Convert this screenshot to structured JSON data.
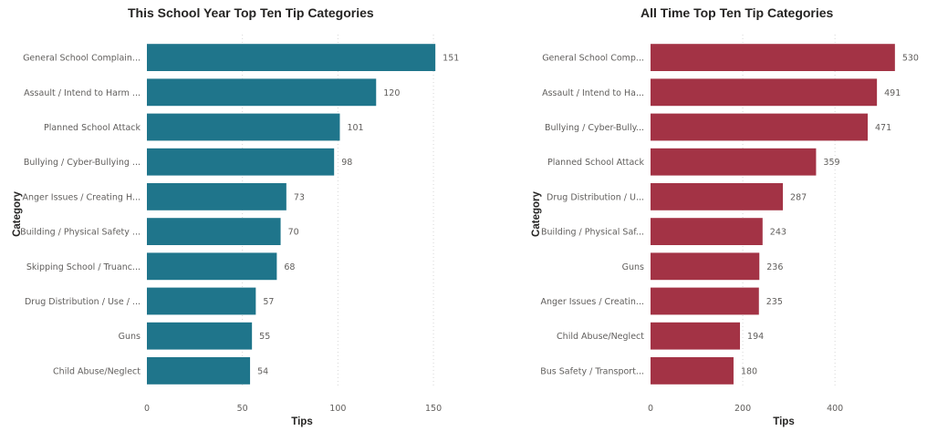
{
  "chart_data": [
    {
      "type": "bar",
      "orientation": "horizontal",
      "title": "This School Year Top Ten Tip Categories",
      "xlabel": "Tips",
      "ylabel": "Category",
      "xlim": [
        0,
        160
      ],
      "xticks": [
        0,
        50,
        100,
        150
      ],
      "grid": true,
      "color": "#1f758b",
      "categories": [
        "General School Complain...",
        "Assault / Intend to Harm ...",
        "Planned School Attack",
        "Bullying / Cyber-Bullying ...",
        "Anger Issues / Creating H...",
        "Building / Physical Safety ...",
        "Skipping School / Truanc...",
        "Drug Distribution / Use / ...",
        "Guns",
        "Child Abuse/Neglect"
      ],
      "values": [
        151,
        120,
        101,
        98,
        73,
        70,
        68,
        57,
        55,
        54
      ]
    },
    {
      "type": "bar",
      "orientation": "horizontal",
      "title": "All Time Top Ten Tip Categories",
      "xlabel": "Tips",
      "ylabel": "Category",
      "xlim": [
        0,
        560
      ],
      "xticks": [
        0,
        200,
        400
      ],
      "grid": true,
      "color": "#a33345",
      "categories": [
        "General School Comp...",
        "Assault / Intend to Ha...",
        "Bullying / Cyber-Bully...",
        "Planned School Attack",
        "Drug Distribution / U...",
        "Building / Physical Saf...",
        "Guns",
        "Anger Issues / Creatin...",
        "Child Abuse/Neglect",
        "Bus Safety / Transport..."
      ],
      "values": [
        530,
        491,
        471,
        359,
        287,
        243,
        236,
        235,
        194,
        180
      ]
    }
  ]
}
